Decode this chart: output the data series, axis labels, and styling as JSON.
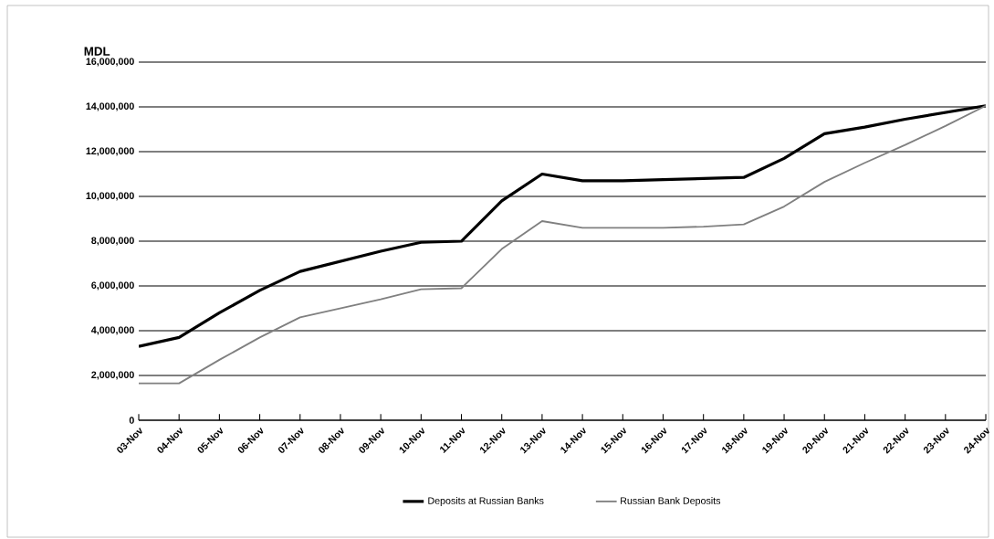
{
  "chart_data": {
    "type": "line",
    "ylabel": "MDL",
    "categories": [
      "03-Nov",
      "04-Nov",
      "05-Nov",
      "06-Nov",
      "07-Nov",
      "08-Nov",
      "09-Nov",
      "10-Nov",
      "11-Nov",
      "12-Nov",
      "13-Nov",
      "14-Nov",
      "15-Nov",
      "16-Nov",
      "17-Nov",
      "18-Nov",
      "19-Nov",
      "20-Nov",
      "21-Nov",
      "22-Nov",
      "23-Nov",
      "24-Nov"
    ],
    "series": [
      {
        "name": "Deposits at Russian Banks",
        "color": "#000000",
        "values": [
          3300000,
          3700000,
          4800000,
          5800000,
          6650000,
          7100000,
          7550000,
          7950000,
          8000000,
          9800000,
          11000000,
          10700000,
          10700000,
          10750000,
          10800000,
          10850000,
          11700000,
          12800000,
          13100000,
          13450000,
          13750000,
          14050000
        ]
      },
      {
        "name": "Russian Bank Deposits",
        "color": "#808080",
        "values": [
          1650000,
          1650000,
          2700000,
          3700000,
          4600000,
          5000000,
          5400000,
          5850000,
          5900000,
          7650000,
          8900000,
          8600000,
          8600000,
          8600000,
          8650000,
          8750000,
          9550000,
          10650000,
          11500000,
          12300000,
          13150000,
          14050000
        ]
      }
    ],
    "ylim": [
      0,
      16000000
    ],
    "yticks": [
      {
        "value": 0,
        "label": "0"
      },
      {
        "value": 2000000,
        "label": "2,000,000"
      },
      {
        "value": 4000000,
        "label": "4,000,000"
      },
      {
        "value": 6000000,
        "label": "6,000,000"
      },
      {
        "value": 8000000,
        "label": "8,000,000"
      },
      {
        "value": 10000000,
        "label": "10,000,000"
      },
      {
        "value": 12000000,
        "label": "12,000,000"
      },
      {
        "value": 14000000,
        "label": "14,000,000"
      },
      {
        "value": 16000000,
        "label": "16,000,000"
      }
    ],
    "grid": "y",
    "legend": "bottom",
    "marker": "none",
    "line_style": "solid"
  }
}
